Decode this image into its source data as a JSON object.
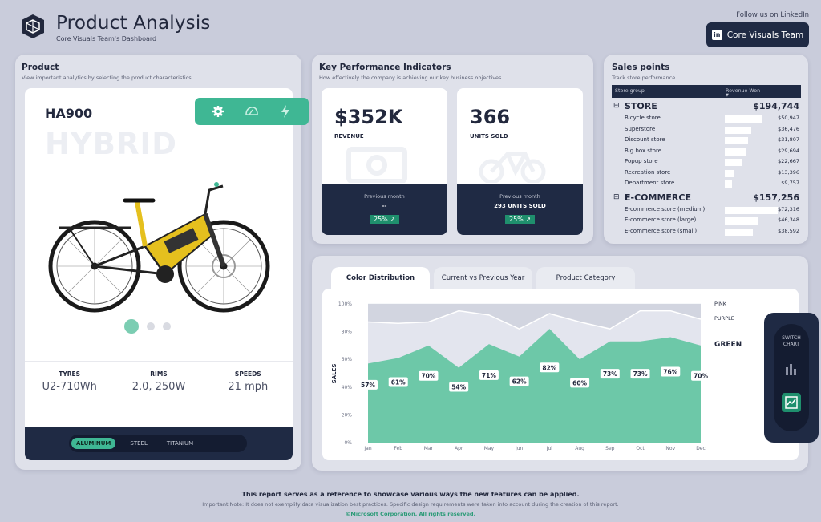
{
  "header": {
    "title": "Product Analysis",
    "subtitle": "Core Visuals Team's Dashboard",
    "follow_text": "Follow us on LinkedIn",
    "linkedin_button": "Core Visuals Team",
    "linkedin_icon_text": "in"
  },
  "product_panel": {
    "title": "Product",
    "description": "View important analytics by selecting the product characteristics",
    "model": "HA900",
    "type_watermark": "HYBRID",
    "icon_tabs": [
      "gear-icon",
      "helmet-icon",
      "bolt-icon"
    ],
    "carousel_active": 0,
    "specs": [
      {
        "label": "TYRES",
        "value": "U2-710Wh"
      },
      {
        "label": "RIMS",
        "value": "2.0, 250W"
      },
      {
        "label": "SPEEDS",
        "value": "21 mph"
      }
    ],
    "materials": [
      "ALUMINUM",
      "STEEL",
      "TITANIUM"
    ],
    "material_selected": "ALUMINUM"
  },
  "kpi_panel": {
    "title": "Key Performance Indicators",
    "description": "How effectively the company is achieving our key business objectives",
    "cards": [
      {
        "value": "$352K",
        "label": "REVENUE",
        "prev_label": "Previous month",
        "prev_value": "--",
        "change": "25%",
        "icon": "money-icon"
      },
      {
        "value": "366",
        "label": "UNITS SOLD",
        "prev_label": "Previous month",
        "prev_value": "293 UNITS SOLD",
        "change": "25%",
        "icon": "bicycle-icon"
      }
    ]
  },
  "sales_panel": {
    "title": "Sales points",
    "description": "Track store performance",
    "col_group": "Store group",
    "col_revenue": "Revenue Won",
    "groups": [
      {
        "name": "STORE",
        "total": "$194,744",
        "rows": [
          {
            "name": "Bicycle store",
            "value": "$50,947",
            "amount": 50947
          },
          {
            "name": "Superstore",
            "value": "$36,476",
            "amount": 36476
          },
          {
            "name": "Discount store",
            "value": "$31,807",
            "amount": 31807
          },
          {
            "name": "Big box store",
            "value": "$29,694",
            "amount": 29694
          },
          {
            "name": "Popup store",
            "value": "$22,667",
            "amount": 22667
          },
          {
            "name": "Recreation store",
            "value": "$13,396",
            "amount": 13396
          },
          {
            "name": "Department store",
            "value": "$9,757",
            "amount": 9757
          }
        ]
      },
      {
        "name": "E-COMMERCE",
        "total": "$157,256",
        "rows": [
          {
            "name": "E-commerce store (medium)",
            "value": "$72,316",
            "amount": 72316
          },
          {
            "name": "E-commerce store (large)",
            "value": "$46,348",
            "amount": 46348
          },
          {
            "name": "E-commerce store (small)",
            "value": "$38,592",
            "amount": 38592
          }
        ]
      }
    ]
  },
  "chart_tabs": [
    "Color Distribution",
    "Current vs Previous Year",
    "Product Category"
  ],
  "chart_tab_active": 0,
  "switch_chart_label": "SWITCH CHART",
  "chart_data": {
    "type": "area",
    "ylabel": "SALES",
    "x": [
      "Jan",
      "Feb",
      "Mar",
      "Apr",
      "May",
      "Jun",
      "Jul",
      "Aug",
      "Sep",
      "Oct",
      "Nov",
      "Dec"
    ],
    "yticks": [
      "0%",
      "20%",
      "40%",
      "60%",
      "80%",
      "100%"
    ],
    "ylim": [
      0,
      100
    ],
    "series": [
      {
        "name": "GREEN",
        "color": "#6dc8a8",
        "values": [
          57,
          61,
          70,
          54,
          71,
          62,
          82,
          60,
          73,
          73,
          76,
          70
        ],
        "labels": [
          "57%",
          "61%",
          "70%",
          "54%",
          "71%",
          "62%",
          "82%",
          "60%",
          "73%",
          "73%",
          "76%",
          "70%"
        ]
      },
      {
        "name": "PURPLE",
        "color": "#e3e5ee",
        "values": [
          87,
          86,
          87,
          95,
          92,
          82,
          93,
          87,
          82,
          95,
          95,
          89
        ]
      },
      {
        "name": "PINK",
        "color": "#d2d5e0",
        "values": [
          100,
          100,
          100,
          100,
          100,
          100,
          100,
          100,
          100,
          100,
          100,
          100
        ]
      }
    ]
  },
  "footer": {
    "line1": "This report serves as a reference to showcase various ways the new features can be applied.",
    "line2": "Important Note: It does not exemplify data visualization best practices. Specific design requirements were taken into account during the creation of this report.",
    "line3": "©Microsoft Corporation. All rights reserved."
  }
}
